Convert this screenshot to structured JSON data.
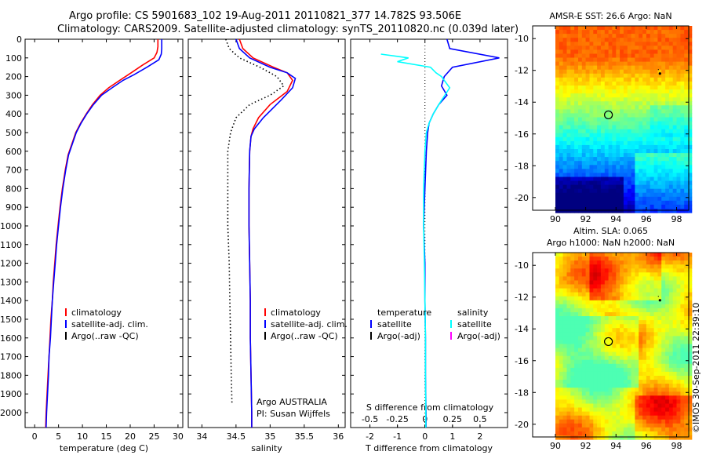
{
  "title": {
    "line1": "Argo profile: CS 5901683_102 19-Aug-2011 20110821_377 14.782S 93.506E",
    "line2": "Climatology: CARS2009. Satellite-adjusted climatology: synTS_20110820.nc (0.039d later)"
  },
  "stamp": "©IMOS 30-Sep-2011 22:39:10",
  "colors": {
    "climatology": "#ff0000",
    "satellite": "#0000ff",
    "argo": "#000000",
    "salinity_satellite": "#00ffff",
    "salinity_argo": "#ff00ff"
  },
  "chart_data": [
    {
      "id": "temperature",
      "type": "line",
      "xlabel": "temperature (deg C)",
      "ylabel": "",
      "xlim": [
        -2,
        31
      ],
      "ylim": [
        2080,
        0
      ],
      "xticks": [
        0,
        5,
        10,
        15,
        20,
        25,
        30
      ],
      "xtick_labels": [
        "0",
        "5",
        "10",
        "15",
        "20",
        "25",
        "30"
      ],
      "yticks": [
        0,
        100,
        200,
        300,
        400,
        500,
        600,
        700,
        800,
        900,
        1000,
        1100,
        1200,
        1300,
        1400,
        1500,
        1600,
        1700,
        1800,
        1900,
        2000
      ],
      "ytick_labels": [
        "0",
        "100",
        "200",
        "300",
        "400",
        "500",
        "600",
        "700",
        "800",
        "900",
        "1000",
        "1100",
        "1200",
        "1300",
        "1400",
        "1500",
        "1600",
        "1700",
        "1800",
        "1900",
        "2000"
      ],
      "legend": [
        "climatology",
        "satellite-adj. clim.",
        "Argo(..raw -QC)"
      ],
      "legend_position": "lower-center",
      "series": [
        {
          "name": "climatology",
          "color": "#ff0000",
          "style": "solid",
          "points": [
            [
              25.8,
              0
            ],
            [
              25.8,
              40
            ],
            [
              25.6,
              70
            ],
            [
              25.0,
              100
            ],
            [
              22.5,
              140
            ],
            [
              20.2,
              180
            ],
            [
              17.8,
              220
            ],
            [
              15.5,
              260
            ],
            [
              13.7,
              300
            ],
            [
              12.1,
              350
            ],
            [
              10.8,
              400
            ],
            [
              9.6,
              450
            ],
            [
              8.6,
              500
            ],
            [
              7.8,
              560
            ],
            [
              7.0,
              620
            ],
            [
              6.4,
              700
            ],
            [
              5.8,
              800
            ],
            [
              5.3,
              900
            ],
            [
              4.9,
              1000
            ],
            [
              4.5,
              1100
            ],
            [
              4.2,
              1200
            ],
            [
              3.9,
              1300
            ],
            [
              3.7,
              1400
            ],
            [
              3.4,
              1500
            ],
            [
              3.2,
              1600
            ],
            [
              3.0,
              1700
            ],
            [
              2.8,
              1800
            ],
            [
              2.6,
              1900
            ],
            [
              2.4,
              2000
            ],
            [
              2.3,
              2080
            ]
          ]
        },
        {
          "name": "satellite-adj. clim.",
          "color": "#0000ff",
          "style": "solid",
          "points": [
            [
              26.6,
              0
            ],
            [
              26.6,
              50
            ],
            [
              26.5,
              80
            ],
            [
              26.0,
              110
            ],
            [
              23.5,
              150
            ],
            [
              20.8,
              190
            ],
            [
              18.5,
              220
            ],
            [
              16.2,
              260
            ],
            [
              14.0,
              300
            ],
            [
              12.3,
              350
            ],
            [
              10.9,
              400
            ],
            [
              9.7,
              450
            ],
            [
              8.7,
              500
            ],
            [
              7.9,
              560
            ],
            [
              7.1,
              620
            ],
            [
              6.5,
              700
            ],
            [
              5.9,
              800
            ],
            [
              5.4,
              900
            ],
            [
              5.0,
              1000
            ],
            [
              4.6,
              1100
            ],
            [
              4.3,
              1200
            ],
            [
              4.0,
              1300
            ],
            [
              3.7,
              1400
            ],
            [
              3.5,
              1500
            ],
            [
              3.3,
              1600
            ],
            [
              3.0,
              1700
            ],
            [
              2.9,
              1800
            ],
            [
              2.7,
              1900
            ],
            [
              2.5,
              2000
            ],
            [
              2.4,
              2080
            ]
          ]
        }
      ]
    },
    {
      "id": "salinity",
      "type": "line",
      "xlabel": "salinity",
      "ylabel": "",
      "xlim": [
        33.8,
        36.1
      ],
      "ylim": [
        2080,
        0
      ],
      "xticks": [
        34,
        34.5,
        35,
        35.5,
        36
      ],
      "xtick_labels": [
        "34",
        "34.5",
        "35",
        "35.5",
        "36"
      ],
      "legend": [
        "climatology",
        "satellite-adj. clim.",
        "Argo(..raw -QC)"
      ],
      "legend_position": "lower-right",
      "annotations": [
        "Argo AUSTRALIA",
        "PI: Susan Wijffels"
      ],
      "series": [
        {
          "name": "climatology",
          "color": "#ff0000",
          "style": "solid",
          "points": [
            [
              34.55,
              0
            ],
            [
              34.6,
              50
            ],
            [
              34.75,
              100
            ],
            [
              35.05,
              150
            ],
            [
              35.25,
              180
            ],
            [
              35.33,
              220
            ],
            [
              35.25,
              280
            ],
            [
              35.0,
              350
            ],
            [
              34.83,
              420
            ],
            [
              34.75,
              480
            ],
            [
              34.72,
              520
            ],
            [
              34.7,
              600
            ],
            [
              34.69,
              800
            ],
            [
              34.69,
              1000
            ],
            [
              34.7,
              1200
            ],
            [
              34.71,
              1400
            ],
            [
              34.71,
              1600
            ],
            [
              34.72,
              1800
            ],
            [
              34.73,
              2000
            ],
            [
              34.73,
              2080
            ]
          ]
        },
        {
          "name": "satellite-adj. clim.",
          "color": "#0000ff",
          "style": "solid",
          "points": [
            [
              34.5,
              0
            ],
            [
              34.55,
              50
            ],
            [
              34.7,
              100
            ],
            [
              35.0,
              150
            ],
            [
              35.25,
              180
            ],
            [
              35.37,
              210
            ],
            [
              35.33,
              260
            ],
            [
              35.15,
              330
            ],
            [
              34.9,
              420
            ],
            [
              34.77,
              480
            ],
            [
              34.72,
              520
            ],
            [
              34.7,
              600
            ],
            [
              34.69,
              800
            ],
            [
              34.69,
              1000
            ],
            [
              34.7,
              1200
            ],
            [
              34.71,
              1400
            ],
            [
              34.71,
              1600
            ],
            [
              34.72,
              1800
            ],
            [
              34.73,
              2000
            ],
            [
              34.73,
              2080
            ]
          ]
        },
        {
          "name": "Argo",
          "color": "#000000",
          "style": "dotted",
          "points": [
            [
              34.35,
              0
            ],
            [
              34.4,
              50
            ],
            [
              34.55,
              100
            ],
            [
              34.85,
              150
            ],
            [
              35.1,
              200
            ],
            [
              35.2,
              250
            ],
            [
              35.0,
              300
            ],
            [
              34.7,
              350
            ],
            [
              34.5,
              420
            ],
            [
              34.42,
              500
            ],
            [
              34.38,
              600
            ],
            [
              34.38,
              800
            ],
            [
              34.38,
              1000
            ],
            [
              34.4,
              1200
            ],
            [
              34.41,
              1400
            ],
            [
              34.42,
              1600
            ],
            [
              34.43,
              1800
            ],
            [
              34.44,
              1950
            ]
          ]
        }
      ]
    },
    {
      "id": "difference",
      "type": "line",
      "xlabel": "T difference from climatology",
      "top_label": "S difference from climatology",
      "xlim": [
        -2.7,
        3.0
      ],
      "ylim": [
        2080,
        0
      ],
      "xticks": [
        -2,
        -1,
        0,
        1,
        2
      ],
      "xtick_labels": [
        "-2",
        "-1",
        "0",
        "1",
        "2"
      ],
      "top_ticks": [
        -0.5,
        -0.25,
        0,
        0.25,
        0.5
      ],
      "top_tick_labels": [
        "-0.5",
        "-0.25",
        "0",
        "0.25",
        "0.5"
      ],
      "legend": [
        "temperature",
        "satellite",
        "Argo(-adj)",
        "salinity",
        "satellite",
        "Argo(-adj)"
      ],
      "legend_position": "lower-center",
      "series": [
        {
          "name": "temperature satellite",
          "color": "#0000ff",
          "style": "solid",
          "points": [
            [
              0.8,
              0
            ],
            [
              0.9,
              50
            ],
            [
              2.7,
              100
            ],
            [
              1.0,
              150
            ],
            [
              0.7,
              200
            ],
            [
              0.6,
              250
            ],
            [
              0.8,
              300
            ],
            [
              0.5,
              350
            ],
            [
              0.3,
              400
            ],
            [
              0.15,
              450
            ],
            [
              0.1,
              500
            ],
            [
              0.05,
              600
            ],
            [
              0.0,
              800
            ],
            [
              -0.05,
              1000
            ],
            [
              0.0,
              1200
            ],
            [
              0.0,
              1400
            ],
            [
              0.02,
              1600
            ],
            [
              0.02,
              1800
            ],
            [
              0.04,
              2000
            ],
            [
              0.04,
              2080
            ]
          ]
        },
        {
          "name": "salinity satellite",
          "color": "#00ffff",
          "style": "solid",
          "points": [
            [
              -1.6,
              80
            ],
            [
              -0.6,
              100
            ],
            [
              -1.0,
              120
            ],
            [
              0.2,
              150
            ],
            [
              0.4,
              180
            ],
            [
              0.6,
              200
            ],
            [
              0.9,
              260
            ],
            [
              0.5,
              350
            ],
            [
              0.3,
              400
            ],
            [
              0.15,
              450
            ],
            [
              0.05,
              500
            ],
            [
              0.0,
              600
            ],
            [
              -0.05,
              800
            ],
            [
              -0.05,
              1000
            ],
            [
              -0.02,
              1200
            ],
            [
              0.0,
              1400
            ],
            [
              0.02,
              1600
            ],
            [
              0.02,
              1800
            ],
            [
              0.03,
              2000
            ],
            [
              0.03,
              2080
            ]
          ]
        }
      ]
    },
    {
      "id": "sst-map",
      "type": "heatmap",
      "title": "AMSR-E SST: 26.6 Argo: NaN",
      "xlim": [
        88.5,
        98.8
      ],
      "ylim": [
        -20.8,
        -9.2
      ],
      "xticks": [
        90,
        92,
        94,
        96,
        98
      ],
      "xtick_labels": [
        "90",
        "92",
        "94",
        "96",
        "98"
      ],
      "yticks": [
        -10,
        -12,
        -14,
        -16,
        -18,
        -20
      ],
      "ytick_labels": [
        "-10",
        "-12",
        "-14",
        "-16",
        "-18",
        "-20"
      ],
      "data_start_lon": 90,
      "marker": {
        "lon": 93.5,
        "lat": -14.8
      },
      "islands": [
        {
          "lon": 96.9,
          "lat": -12.2
        }
      ]
    },
    {
      "id": "sla-map",
      "type": "heatmap",
      "title": "Altim. SLA: 0.065",
      "subtitle": "Argo h1000: NaN h2000: NaN",
      "xlim": [
        88.5,
        98.8
      ],
      "ylim": [
        -20.8,
        -9.2
      ],
      "xticks": [
        90,
        92,
        94,
        96,
        98
      ],
      "xtick_labels": [
        "90",
        "92",
        "94",
        "96",
        "98"
      ],
      "yticks": [
        -10,
        -12,
        -14,
        -16,
        -18,
        -20
      ],
      "ytick_labels": [
        "-10",
        "-12",
        "-14",
        "-16",
        "-18",
        "-20"
      ],
      "data_start_lon": 90,
      "marker": {
        "lon": 93.5,
        "lat": -14.8
      },
      "islands": [
        {
          "lon": 96.9,
          "lat": -12.2
        }
      ]
    }
  ]
}
